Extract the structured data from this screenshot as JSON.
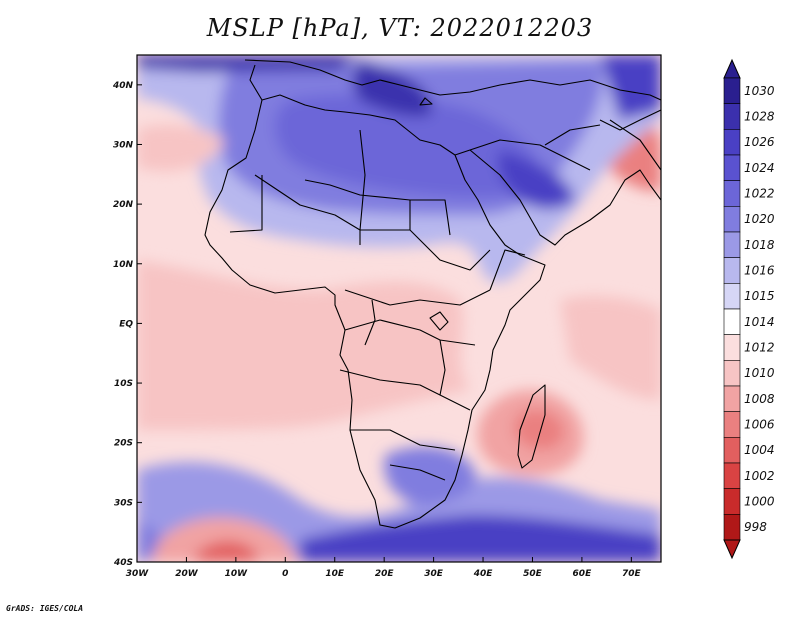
{
  "title": "MSLP [hPa], VT: 2022012203",
  "credit": "GrADS: IGES/COLA",
  "map": {
    "lon_range": [
      -30,
      76
    ],
    "lat_range": [
      -40,
      45
    ],
    "lon_ticks": [
      "30W",
      "20W",
      "10W",
      "0",
      "10E",
      "20E",
      "30E",
      "40E",
      "50E",
      "60E",
      "70E"
    ],
    "lat_ticks": [
      "40N",
      "30N",
      "20N",
      "10N",
      "EQ",
      "10S",
      "20S",
      "30S",
      "40S"
    ]
  },
  "colorbar": {
    "levels": [
      "1030",
      "1028",
      "1026",
      "1024",
      "1022",
      "1020",
      "1018",
      "1016",
      "1015",
      "1014",
      "1012",
      "1010",
      "1008",
      "1006",
      "1004",
      "1002",
      "1000",
      "998"
    ],
    "colors": [
      "#2a1f8f",
      "#3b30ad",
      "#4a40c4",
      "#5a52d0",
      "#6c66d8",
      "#807ddf",
      "#9b99e6",
      "#b8b8ee",
      "#d6d6f6",
      "#ffffff",
      "#fbdede",
      "#f7c4c4",
      "#f1a3a3",
      "#ea8080",
      "#e25f5f",
      "#d94343",
      "#c92b2b",
      "#b01818"
    ]
  }
}
